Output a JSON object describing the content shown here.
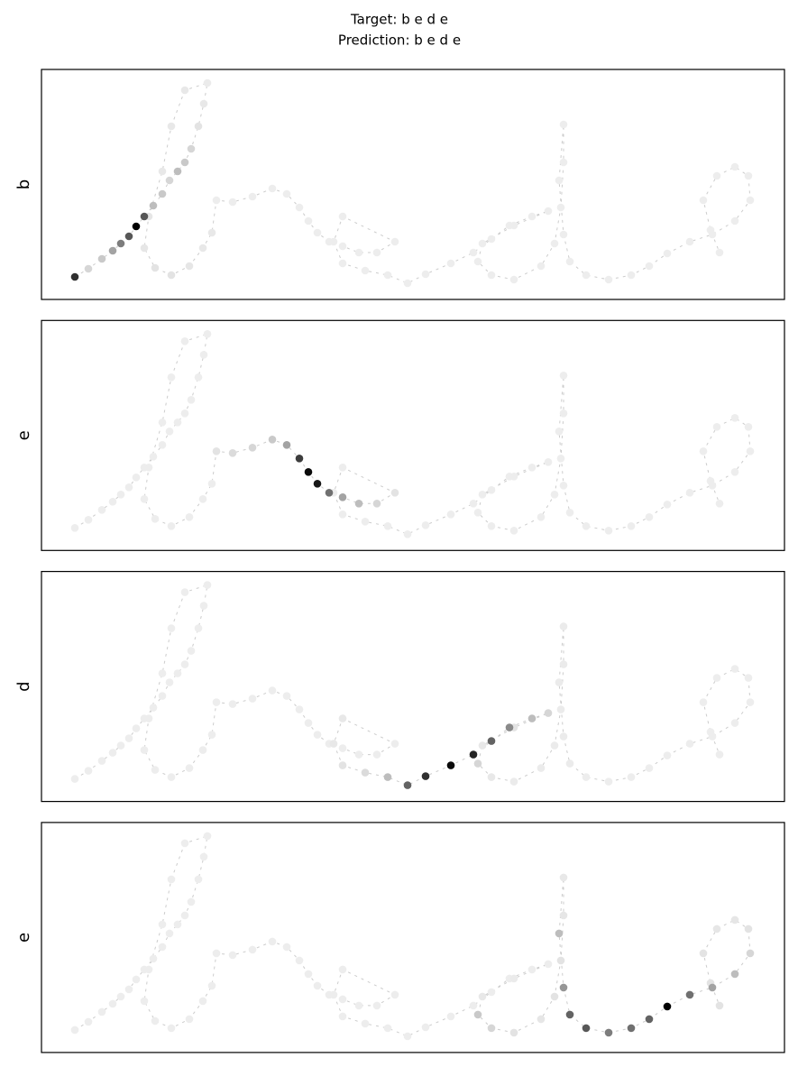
{
  "title": "Target: b e d e",
  "subtitle": "Prediction: b e d e",
  "chart_data": [
    {
      "type": "scatter",
      "ylabel": "b",
      "xlim": [
        0,
        824
      ],
      "ylim": [
        0,
        255
      ],
      "color": "#000000",
      "trace_color": "#cccccc",
      "x": [
        37,
        52,
        67,
        79,
        88,
        97,
        105,
        114,
        124,
        134,
        142,
        151,
        159,
        166,
        174,
        180,
        184,
        159,
        144,
        134,
        119,
        114,
        126,
        144,
        164,
        179,
        189,
        194,
        212,
        234,
        256,
        272,
        286,
        296,
        306,
        319,
        334,
        352,
        372,
        392,
        334,
        324,
        334,
        359,
        384,
        406,
        426,
        454,
        479,
        499,
        519,
        544,
        562,
        524,
        489,
        484,
        499,
        524,
        554,
        569,
        576,
        579,
        579,
        574,
        579,
        586,
        604,
        629,
        654,
        674,
        694,
        719,
        744,
        769,
        786,
        784,
        769,
        749,
        734,
        742,
        752
      ],
      "y": [
        25,
        34,
        45,
        54,
        62,
        70,
        81,
        92,
        104,
        117,
        132,
        142,
        152,
        167,
        192,
        217,
        240,
        232,
        192,
        142,
        92,
        57,
        35,
        27,
        37,
        57,
        74,
        110,
        108,
        114,
        123,
        117,
        102,
        87,
        74,
        64,
        59,
        52,
        52,
        64,
        92,
        64,
        40,
        32,
        27,
        18,
        28,
        40,
        52,
        67,
        82,
        92,
        98,
        82,
        62,
        42,
        27,
        22,
        37,
        62,
        102,
        152,
        194,
        132,
        72,
        42,
        27,
        22,
        27,
        37,
        51,
        64,
        72,
        87,
        110,
        137,
        147,
        137,
        110,
        77,
        52
      ],
      "weights": [
        0.75,
        0.1,
        0.15,
        0.3,
        0.45,
        0.6,
        1,
        0.6,
        0.2,
        0.15,
        0.1,
        0.2,
        0.15,
        0.1,
        0.05,
        0.03,
        0.02,
        0.03,
        0.03,
        0.03,
        0.04,
        0.04,
        0.05,
        0.05,
        0.04,
        0.03,
        0.03,
        0.01,
        0.01,
        0.01,
        0.01,
        0.01,
        0.01,
        0.01,
        0.01,
        0.01,
        0.01,
        0.01,
        0.01,
        0.01,
        0.01,
        0.01,
        0.01,
        0.01,
        0.01,
        0.01,
        0.01,
        0.01,
        0.01,
        0.01,
        0.01,
        0.01,
        0.01,
        0.01,
        0.01,
        0.01,
        0.01,
        0.01,
        0.01,
        0.01,
        0.01,
        0.01,
        0.01,
        0.01,
        0.01,
        0.01,
        0.01,
        0.01,
        0.01,
        0.01,
        0.01,
        0.01,
        0.01,
        0.01,
        0.01,
        0.01,
        0.01,
        0.01,
        0.01,
        0.01,
        0.01
      ]
    },
    {
      "type": "scatter",
      "ylabel": "e",
      "xlim": [
        0,
        824
      ],
      "ylim": [
        0,
        255
      ],
      "color": "#000000",
      "trace_color": "#cccccc",
      "x": [
        37,
        52,
        67,
        79,
        88,
        97,
        105,
        114,
        124,
        134,
        142,
        151,
        159,
        166,
        174,
        180,
        184,
        159,
        144,
        134,
        119,
        114,
        126,
        144,
        164,
        179,
        189,
        194,
        212,
        234,
        256,
        272,
        286,
        296,
        306,
        319,
        334,
        352,
        372,
        392,
        334,
        324,
        334,
        359,
        384,
        406,
        426,
        454,
        479,
        499,
        519,
        544,
        562,
        524,
        489,
        484,
        499,
        524,
        554,
        569,
        576,
        579,
        579,
        574,
        579,
        586,
        604,
        629,
        654,
        674,
        694,
        719,
        744,
        769,
        786,
        784,
        769,
        749,
        734,
        742,
        752
      ],
      "y": [
        25,
        34,
        45,
        54,
        62,
        70,
        81,
        92,
        104,
        117,
        132,
        142,
        152,
        167,
        192,
        217,
        240,
        232,
        192,
        142,
        92,
        57,
        35,
        27,
        37,
        57,
        74,
        110,
        108,
        114,
        123,
        117,
        102,
        87,
        74,
        64,
        59,
        52,
        52,
        64,
        92,
        64,
        40,
        32,
        27,
        18,
        28,
        40,
        52,
        67,
        82,
        92,
        98,
        82,
        62,
        42,
        27,
        22,
        37,
        62,
        102,
        152,
        194,
        132,
        72,
        42,
        27,
        22,
        27,
        37,
        51,
        64,
        72,
        87,
        110,
        137,
        147,
        137,
        110,
        77,
        52
      ],
      "weights": [
        0.01,
        0.01,
        0.01,
        0.01,
        0.01,
        0.01,
        0.01,
        0.01,
        0.01,
        0.01,
        0.01,
        0.01,
        0.01,
        0.01,
        0.01,
        0.01,
        0.01,
        0.01,
        0.01,
        0.01,
        0.01,
        0.01,
        0.01,
        0.01,
        0.01,
        0.01,
        0.01,
        0.05,
        0.08,
        0.1,
        0.15,
        0.3,
        0.7,
        0.9,
        0.85,
        0.5,
        0.3,
        0.2,
        0.1,
        0.05,
        0.01,
        0.01,
        0.01,
        0.01,
        0.01,
        0.01,
        0.01,
        0.01,
        0.01,
        0.01,
        0.01,
        0.01,
        0.01,
        0.01,
        0.01,
        0.01,
        0.01,
        0.01,
        0.01,
        0.01,
        0.01,
        0.01,
        0.01,
        0.01,
        0.01,
        0.01,
        0.01,
        0.01,
        0.01,
        0.01,
        0.01,
        0.01,
        0.01,
        0.01,
        0.01,
        0.01,
        0.01,
        0.01,
        0.01,
        0.01,
        0.01
      ]
    },
    {
      "type": "scatter",
      "ylabel": "d",
      "xlim": [
        0,
        824
      ],
      "ylim": [
        0,
        255
      ],
      "color": "#000000",
      "trace_color": "#cccccc",
      "x": [
        37,
        52,
        67,
        79,
        88,
        97,
        105,
        114,
        124,
        134,
        142,
        151,
        159,
        166,
        174,
        180,
        184,
        159,
        144,
        134,
        119,
        114,
        126,
        144,
        164,
        179,
        189,
        194,
        212,
        234,
        256,
        272,
        286,
        296,
        306,
        319,
        334,
        352,
        372,
        392,
        334,
        324,
        334,
        359,
        384,
        406,
        426,
        454,
        479,
        499,
        519,
        544,
        562,
        524,
        489,
        484,
        499,
        524,
        554,
        569,
        576,
        579,
        579,
        574,
        579,
        586,
        604,
        629,
        654,
        674,
        694,
        719,
        744,
        769,
        786,
        784,
        769,
        749,
        734,
        742,
        752
      ],
      "y": [
        25,
        34,
        45,
        54,
        62,
        70,
        81,
        92,
        104,
        117,
        132,
        142,
        152,
        167,
        192,
        217,
        240,
        232,
        192,
        142,
        92,
        57,
        35,
        27,
        37,
        57,
        74,
        110,
        108,
        114,
        123,
        117,
        102,
        87,
        74,
        64,
        59,
        52,
        52,
        64,
        92,
        64,
        40,
        32,
        27,
        18,
        28,
        40,
        52,
        67,
        82,
        92,
        98,
        82,
        62,
        42,
        27,
        22,
        37,
        62,
        102,
        152,
        194,
        132,
        72,
        42,
        27,
        22,
        27,
        37,
        51,
        64,
        72,
        87,
        110,
        137,
        147,
        137,
        110,
        77,
        52
      ],
      "weights": [
        0.01,
        0.01,
        0.01,
        0.01,
        0.01,
        0.01,
        0.01,
        0.01,
        0.01,
        0.01,
        0.01,
        0.01,
        0.01,
        0.01,
        0.01,
        0.01,
        0.01,
        0.01,
        0.01,
        0.01,
        0.01,
        0.01,
        0.01,
        0.01,
        0.01,
        0.01,
        0.01,
        0.01,
        0.01,
        0.01,
        0.01,
        0.01,
        0.01,
        0.01,
        0.01,
        0.01,
        0.01,
        0.01,
        0.01,
        0.01,
        0.03,
        0.03,
        0.05,
        0.08,
        0.2,
        0.55,
        0.75,
        0.9,
        0.8,
        0.55,
        0.4,
        0.2,
        0.1,
        0.05,
        0.03,
        0.1,
        0.03,
        0.02,
        0.02,
        0.02,
        0.02,
        0.02,
        0.02,
        0.02,
        0.02,
        0.02,
        0.01,
        0.01,
        0.01,
        0.01,
        0.01,
        0.01,
        0.01,
        0.01,
        0.01,
        0.01,
        0.01,
        0.01,
        0.01,
        0.01,
        0.01
      ]
    },
    {
      "type": "scatter",
      "ylabel": "e",
      "xlim": [
        0,
        824
      ],
      "ylim": [
        0,
        255
      ],
      "color": "#000000",
      "trace_color": "#cccccc",
      "x": [
        37,
        52,
        67,
        79,
        88,
        97,
        105,
        114,
        124,
        134,
        142,
        151,
        159,
        166,
        174,
        180,
        184,
        159,
        144,
        134,
        119,
        114,
        126,
        144,
        164,
        179,
        189,
        194,
        212,
        234,
        256,
        272,
        286,
        296,
        306,
        319,
        334,
        352,
        372,
        392,
        334,
        324,
        334,
        359,
        384,
        406,
        426,
        454,
        479,
        499,
        519,
        544,
        562,
        524,
        489,
        484,
        499,
        524,
        554,
        569,
        576,
        579,
        579,
        574,
        579,
        586,
        604,
        629,
        654,
        674,
        694,
        719,
        744,
        769,
        786,
        784,
        769,
        749,
        734,
        742,
        752
      ],
      "y": [
        25,
        34,
        45,
        54,
        62,
        70,
        81,
        92,
        104,
        117,
        132,
        142,
        152,
        167,
        192,
        217,
        240,
        232,
        192,
        142,
        92,
        57,
        35,
        27,
        37,
        57,
        74,
        110,
        108,
        114,
        123,
        117,
        102,
        87,
        74,
        64,
        59,
        52,
        52,
        64,
        92,
        64,
        40,
        32,
        27,
        18,
        28,
        40,
        52,
        67,
        82,
        92,
        98,
        82,
        62,
        42,
        27,
        22,
        37,
        62,
        102,
        152,
        194,
        132,
        72,
        42,
        27,
        22,
        27,
        37,
        51,
        64,
        72,
        87,
        110,
        137,
        147,
        137,
        110,
        77,
        52
      ],
      "weights": [
        0.01,
        0.01,
        0.01,
        0.01,
        0.01,
        0.01,
        0.01,
        0.01,
        0.01,
        0.01,
        0.01,
        0.01,
        0.01,
        0.01,
        0.01,
        0.01,
        0.01,
        0.01,
        0.01,
        0.01,
        0.01,
        0.01,
        0.01,
        0.01,
        0.01,
        0.01,
        0.01,
        0.01,
        0.01,
        0.01,
        0.01,
        0.01,
        0.01,
        0.01,
        0.01,
        0.01,
        0.01,
        0.01,
        0.01,
        0.01,
        0.01,
        0.01,
        0.01,
        0.01,
        0.01,
        0.01,
        0.01,
        0.01,
        0.01,
        0.01,
        0.01,
        0.01,
        0.01,
        0.02,
        0.03,
        0.15,
        0.1,
        0.05,
        0.04,
        0.05,
        0.05,
        0.04,
        0.03,
        0.2,
        0.35,
        0.55,
        0.6,
        0.45,
        0.5,
        0.55,
        0.95,
        0.5,
        0.3,
        0.2,
        0.1,
        0.05,
        0.04,
        0.04,
        0.05,
        0.05,
        0.05
      ]
    }
  ]
}
